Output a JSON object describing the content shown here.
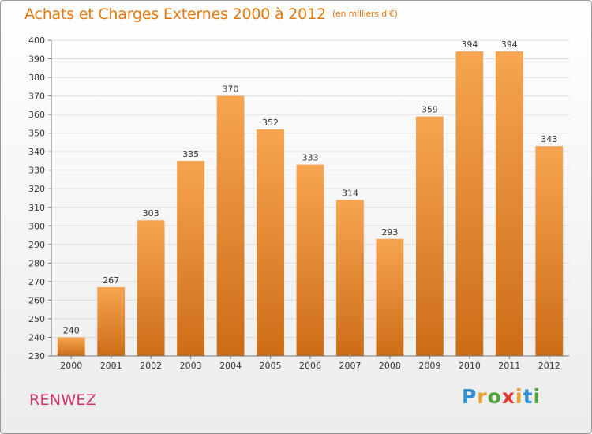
{
  "chart_data": {
    "type": "bar",
    "title": "Achats et Charges Externes 2000 à 2012",
    "subtitle": "(en milliers d'€)",
    "categories": [
      "2000",
      "2001",
      "2002",
      "2003",
      "2004",
      "2005",
      "2006",
      "2007",
      "2008",
      "2009",
      "2010",
      "2011",
      "2012"
    ],
    "values": [
      240,
      267,
      303,
      335,
      370,
      352,
      333,
      314,
      293,
      359,
      394,
      394,
      343
    ],
    "ylim": [
      230,
      400
    ],
    "yticks": [
      230,
      240,
      250,
      260,
      270,
      280,
      290,
      300,
      310,
      320,
      330,
      340,
      350,
      360,
      370,
      380,
      390,
      400
    ],
    "xlabel": "",
    "ylabel": "",
    "grid": true,
    "colors": {
      "bar_light": "#f7a550",
      "bar_dark": "#cd6d16",
      "title": "#e3780f",
      "city": "#d2336a"
    }
  },
  "footer": {
    "city": "RENWEZ",
    "logo_letters": [
      "P",
      "r",
      "o",
      "x",
      "i",
      "t",
      "i"
    ],
    "logo_colors": [
      "#2f8fd5",
      "#e8a02a",
      "#4fa63a",
      "#e23a2e",
      "#e8a02a",
      "#2f8fd5",
      "#4fa63a"
    ]
  }
}
